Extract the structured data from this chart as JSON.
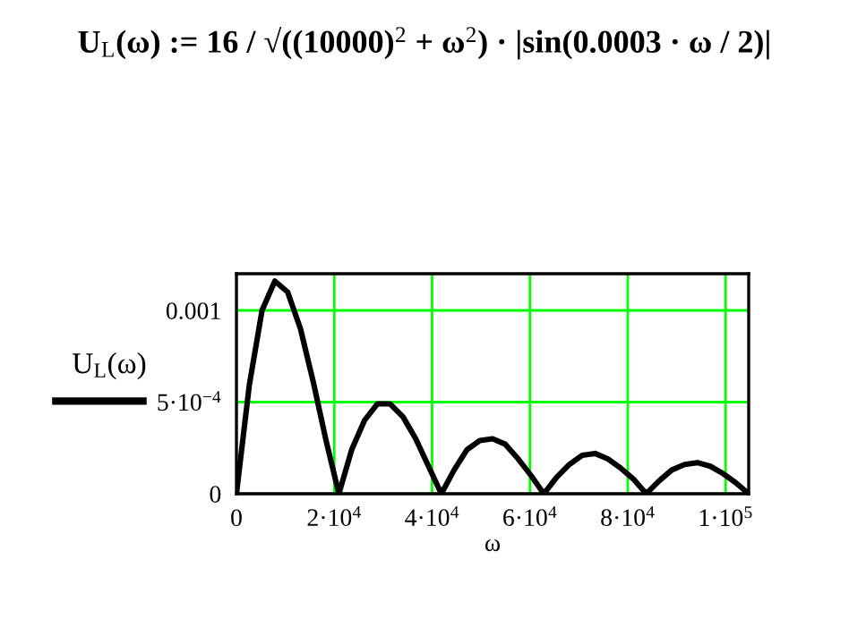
{
  "chart_data": {
    "type": "line",
    "title": "U$_{L}$(ω) := 16 / √((10000)$^{2}$ + ω$^{2}$) · |sin(0.0003 · ω / 2)|",
    "xlabel": "ω",
    "legend": "left",
    "series": [
      {
        "name": "U$_{L}$(ω)",
        "color": "#000000",
        "x": [
          0,
          2618,
          5236,
          7854,
          10472,
          13090,
          15708,
          18326,
          20944,
          23562,
          26180,
          28798,
          31416,
          34034,
          36652,
          39270,
          41888,
          44506,
          47124,
          49742,
          52360,
          54978,
          57596,
          60214,
          62832,
          65450,
          68068,
          70686,
          73304,
          75922,
          78540,
          81158,
          83776,
          86394,
          89012,
          91630,
          94248,
          96866,
          99484,
          102102,
          104720
        ],
        "values": [
          0,
          0.00059,
          0.001,
          0.00116,
          0.0011,
          0.0009,
          0.00061,
          0.00029,
          0,
          0.00024,
          0.0004,
          0.00049,
          0.00049,
          0.00042,
          0.0003,
          0.00015,
          0,
          0.00013,
          0.00024,
          0.00029,
          0.0003,
          0.00027,
          0.00019,
          0.0001,
          0,
          9e-05,
          0.00016,
          0.00021,
          0.00022,
          0.00019,
          0.00014,
          8e-05,
          0,
          7e-05,
          0.00013,
          0.00016,
          0.00017,
          0.00015,
          0.00011,
          6e-05,
          0
        ]
      }
    ],
    "xlim": [
      0,
      104720
    ],
    "ylim": [
      0,
      0.0012
    ],
    "xticks": [
      0,
      {
        "value": 20000,
        "label": "2·10$^{4}$"
      },
      {
        "value": 40000,
        "label": "4·10$^{4}$"
      },
      {
        "value": 60000,
        "label": "6·10$^{4}$"
      },
      {
        "value": 80000,
        "label": "8·10$^{4}$"
      },
      {
        "value": 100000,
        "label": "1·10$^{5}$"
      }
    ],
    "yticks": [
      0,
      {
        "value": 0.0005,
        "label": "5·10$^{−4}$"
      },
      0.001
    ],
    "grid": true,
    "marker": "none",
    "line_style": "solid"
  }
}
